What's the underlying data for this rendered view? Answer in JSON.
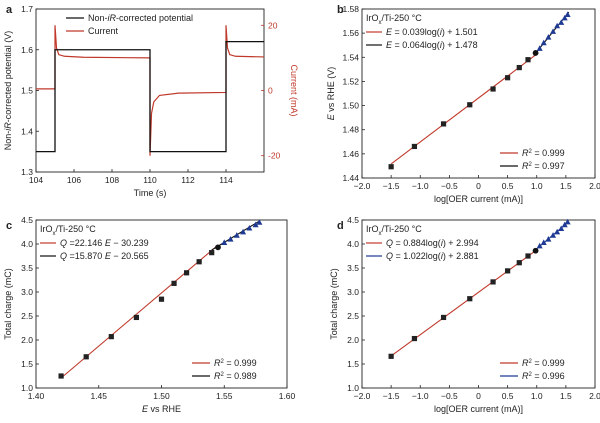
{
  "chart_data": [
    {
      "panel_label": "a",
      "type": "line",
      "xlabel": "Time (s)",
      "ylabel": "Non-iR-corrected potential (V)",
      "ylabel2": "Current (mA)",
      "xlim": [
        104,
        116
      ],
      "ylim": [
        1.3,
        1.7
      ],
      "ylim2": [
        -25,
        25
      ],
      "xticks": [
        "104",
        "106",
        "108",
        "110",
        "112",
        "114"
      ],
      "yticks": [
        "1.3",
        "1.4",
        "1.5",
        "1.6",
        "1.7"
      ],
      "yticks2": [
        "-20",
        "0",
        "20"
      ],
      "legend": [
        "Non-iR-corrected potential",
        "Current"
      ],
      "series": [
        {
          "name": "Non-iR-corrected potential",
          "color": "#111111",
          "points": [
            [
              104,
              1.35
            ],
            [
              105,
              1.35
            ],
            [
              105,
              1.6
            ],
            [
              110,
              1.6
            ],
            [
              110,
              1.35
            ],
            [
              114,
              1.35
            ],
            [
              114,
              1.62
            ],
            [
              116,
              1.62
            ]
          ]
        },
        {
          "name": "Current",
          "color": "#c0392b",
          "points": [
            [
              104,
              0.5
            ],
            [
              105,
              0.5
            ],
            [
              105,
              20
            ],
            [
              105.08,
              13
            ],
            [
              105.2,
              11
            ],
            [
              105.5,
              10.5
            ],
            [
              106.5,
              10.2
            ],
            [
              110,
              10.0
            ],
            [
              110,
              -20
            ],
            [
              110.08,
              -7
            ],
            [
              110.2,
              -3.5
            ],
            [
              110.5,
              -1.5
            ],
            [
              111.5,
              -0.8
            ],
            [
              114,
              -0.6
            ],
            [
              114,
              20
            ],
            [
              114.08,
              13
            ],
            [
              114.2,
              11
            ],
            [
              114.5,
              10.5
            ],
            [
              116,
              10.3
            ]
          ]
        }
      ]
    },
    {
      "panel_label": "b",
      "type": "scatter",
      "sample": "IrOx/Ti-250 °C",
      "xlabel": "log[OER current (mA)]",
      "ylabel": "E vs RHE (V)",
      "xlim": [
        -2.0,
        2.0
      ],
      "ylim": [
        1.43,
        1.58
      ],
      "xticks": [
        "−2.0",
        "−1.5",
        "−1.0",
        "−0.5",
        "0",
        "0.5",
        "1.0",
        "1.5",
        "2.0"
      ],
      "yticks": [
        "1.44",
        "1.46",
        "1.48",
        "1.50",
        "1.52",
        "1.54",
        "1.56",
        "1.58"
      ],
      "fits": [
        {
          "equation": "E = 0.039log(i) + 1.501",
          "r2": "R2 = 0.999",
          "color": "#c0392b",
          "range": [
            -1.5,
            1.0
          ],
          "slope": 0.039,
          "intercept": 1.501
        },
        {
          "equation": "E = 0.064log(i) + 1.478",
          "r2": "R2 = 0.997",
          "color": "#111111",
          "range": [
            0.95,
            1.55
          ],
          "slope": 0.064,
          "intercept": 1.478
        }
      ],
      "squares": [
        [
          -1.5,
          1.44
        ],
        [
          -1.1,
          1.458
        ],
        [
          -0.6,
          1.478
        ],
        [
          -0.15,
          1.495
        ],
        [
          0.25,
          1.509
        ],
        [
          0.5,
          1.519
        ],
        [
          0.7,
          1.528
        ],
        [
          0.85,
          1.535
        ]
      ],
      "circles": [
        [
          0.98,
          1.541
        ]
      ],
      "triangles": [
        [
          1.05,
          1.545
        ],
        [
          1.12,
          1.55
        ],
        [
          1.2,
          1.555
        ],
        [
          1.28,
          1.56
        ],
        [
          1.35,
          1.565
        ],
        [
          1.42,
          1.568
        ],
        [
          1.48,
          1.572
        ],
        [
          1.53,
          1.575
        ]
      ]
    },
    {
      "panel_label": "c",
      "type": "scatter",
      "sample": "IrOx/Ti-250 °C",
      "xlabel": "E vs RHE",
      "ylabel": "Total charge (mC)",
      "xlim": [
        1.4,
        1.6
      ],
      "ylim": [
        1.0,
        4.5
      ],
      "xticks": [
        "1.40",
        "1.45",
        "1.50",
        "1.55",
        "1.60"
      ],
      "yticks": [
        "1.0",
        "1.5",
        "2.0",
        "2.5",
        "3.0",
        "3.5",
        "4.0",
        "4.5"
      ],
      "fits": [
        {
          "equation": "Q =22.146 E − 30.239",
          "r2": "R2 = 0.999",
          "color": "#c0392b",
          "range": [
            1.42,
            1.545
          ],
          "slope": 22.146,
          "intercept": -30.239
        },
        {
          "equation": "Q =15.870 E − 20.565",
          "r2": "R2 = 0.989",
          "color": "#111111",
          "range": [
            1.54,
            1.578
          ],
          "slope": 15.87,
          "intercept": -20.565
        }
      ],
      "squares": [
        [
          1.42,
          1.25
        ],
        [
          1.44,
          1.65
        ],
        [
          1.46,
          2.07
        ],
        [
          1.48,
          2.47
        ],
        [
          1.5,
          2.85
        ],
        [
          1.51,
          3.18
        ],
        [
          1.52,
          3.4
        ],
        [
          1.53,
          3.63
        ],
        [
          1.54,
          3.82
        ]
      ],
      "circles": [
        [
          1.545,
          3.93
        ]
      ],
      "triangles": [
        [
          1.55,
          4.03
        ],
        [
          1.555,
          4.1
        ],
        [
          1.56,
          4.18
        ],
        [
          1.565,
          4.25
        ],
        [
          1.57,
          4.33
        ],
        [
          1.575,
          4.4
        ],
        [
          1.578,
          4.45
        ]
      ]
    },
    {
      "panel_label": "d",
      "type": "scatter",
      "sample": "IrOx/Ti-250 °C",
      "xlabel": "log[OER current (mA)]",
      "ylabel": "Total charge (mC)",
      "xlim": [
        -2.0,
        2.0
      ],
      "ylim": [
        1.0,
        4.5
      ],
      "xticks": [
        "−2.0",
        "−1.5",
        "−1.0",
        "−0.5",
        "0",
        "0.5",
        "1.0",
        "1.5",
        "2.0"
      ],
      "yticks": [
        "1.0",
        "1.5",
        "2.0",
        "2.5",
        "3.0",
        "3.5",
        "4.0",
        "4.5"
      ],
      "fits": [
        {
          "equation": "Q = 0.884log(i) + 2.994",
          "r2": "R2 = 0.999",
          "color": "#c0392b",
          "range": [
            -1.5,
            1.0
          ],
          "slope": 0.884,
          "intercept": 2.994
        },
        {
          "equation": "Q = 1.022log(i) + 2.881",
          "r2": "R2 = 0.996",
          "color": "#1f3a93",
          "range": [
            0.95,
            1.55
          ],
          "slope": 1.022,
          "intercept": 2.881
        }
      ],
      "squares": [
        [
          -1.5,
          1.66
        ],
        [
          -1.1,
          2.03
        ],
        [
          -0.6,
          2.47
        ],
        [
          -0.15,
          2.86
        ],
        [
          0.25,
          3.21
        ],
        [
          0.5,
          3.44
        ],
        [
          0.7,
          3.61
        ],
        [
          0.85,
          3.75
        ]
      ],
      "circles": [
        [
          0.98,
          3.86
        ]
      ],
      "triangles": [
        [
          1.05,
          3.96
        ],
        [
          1.12,
          4.03
        ],
        [
          1.2,
          4.1
        ],
        [
          1.28,
          4.18
        ],
        [
          1.35,
          4.25
        ],
        [
          1.42,
          4.32
        ],
        [
          1.48,
          4.4
        ],
        [
          1.53,
          4.46
        ]
      ]
    }
  ]
}
